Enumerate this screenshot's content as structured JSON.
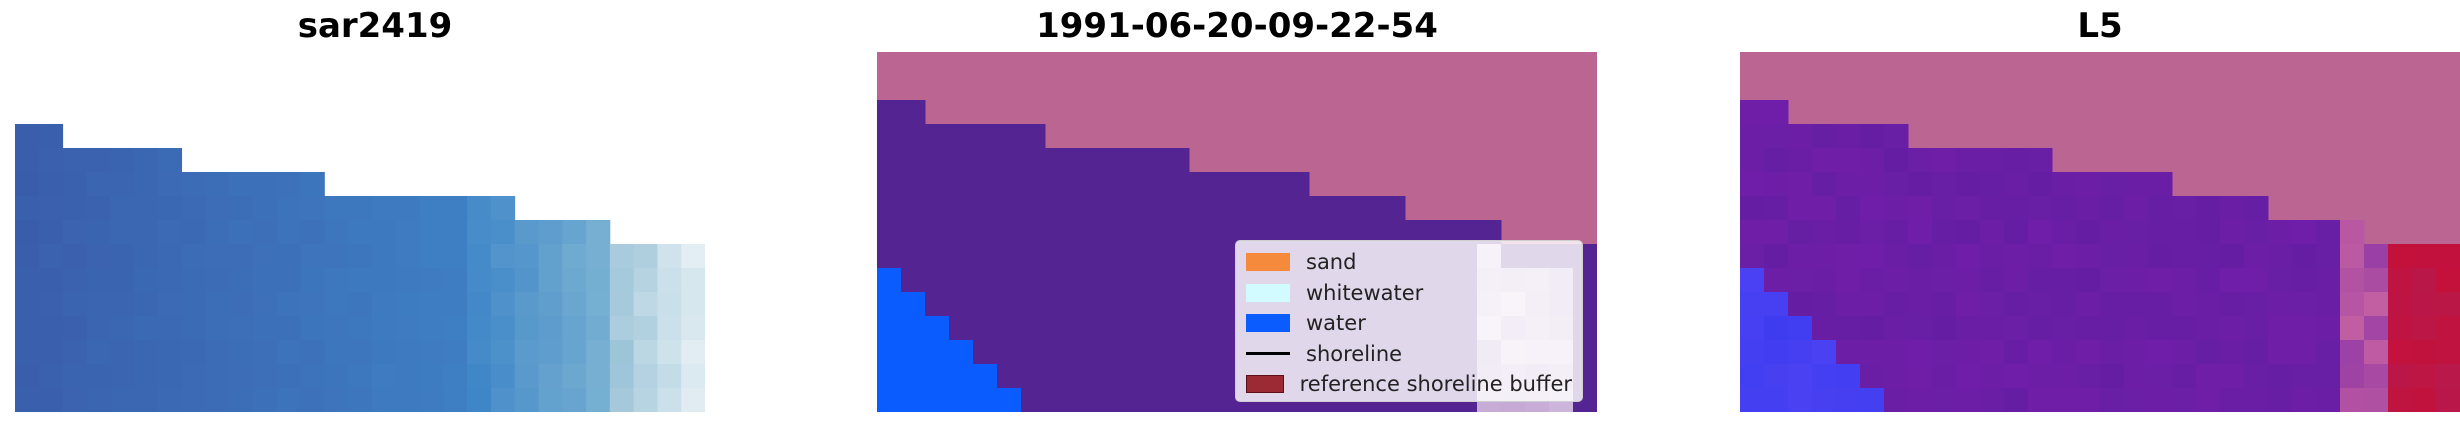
{
  "panels": [
    {
      "title": "sar2419"
    },
    {
      "title": "1991-06-20-09-22-54"
    },
    {
      "title": "L5"
    }
  ],
  "legend": {
    "items": [
      {
        "label": "sand",
        "color": "#f58a3c",
        "kind": "patch"
      },
      {
        "label": "whitewater",
        "color": "#d2fbff",
        "kind": "patch"
      },
      {
        "label": "water",
        "color": "#0a5cff",
        "kind": "patch"
      },
      {
        "label": "shoreline",
        "color": "#000000",
        "kind": "line"
      },
      {
        "label": "reference shoreline buffer",
        "color": "#9b2a35",
        "kind": "patch"
      }
    ]
  },
  "colors": {
    "classified_land": "#bb6593",
    "classified_sea": "#542492",
    "classified_water": "#0a5cff",
    "mndwi_land": "#bb6593",
    "mndwi_sea": "#6f1ea8",
    "mndwi_water": "#3f3cf0",
    "mndwi_high": "#c4103a",
    "rgb_dark": "#3a5dab",
    "rgb_mid": "#3f86c8",
    "rgb_light": "#e8f1f5"
  }
}
